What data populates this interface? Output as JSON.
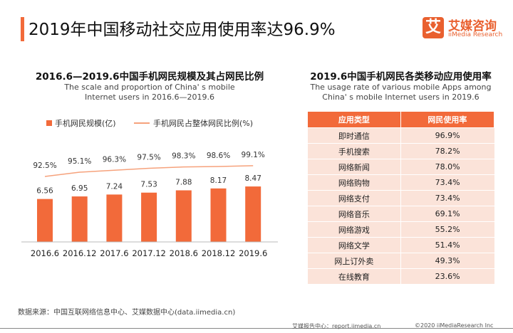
{
  "header": {
    "title": "2019年中国移动社交应用使用率达96.9%",
    "logo_cn": "艾媒咨询",
    "logo_en": "iiMedia Research",
    "logo_mark": "艾"
  },
  "left": {
    "title": "2016.6—2019.6中国手机网民规模及其占网民比例",
    "subtitle1": "The scale and proportion of China' s mobile",
    "subtitle2": "Internet users  in 2016.6—2019.6"
  },
  "right": {
    "title": "2019.6中国手机网民各类移动应用使用率",
    "subtitle1": "The usage rate of various mobile Apps among",
    "subtitle2": "China' s mobile Internet users in 2019.6"
  },
  "chart_data": {
    "type": "bar",
    "categories": [
      "2016.6",
      "2016.12",
      "2017.6",
      "2017.12",
      "2018.6",
      "2018.12",
      "2019.6"
    ],
    "series": [
      {
        "name": "手机网民规模(亿)",
        "type": "bar",
        "values": [
          6.56,
          6.95,
          7.24,
          7.53,
          7.88,
          8.17,
          8.47
        ],
        "color": "#f26a3a"
      },
      {
        "name": "手机网民占整体网民比例(%)",
        "type": "line",
        "values": [
          92.5,
          95.1,
          96.3,
          97.5,
          98.3,
          98.6,
          99.1
        ],
        "labels": [
          "92.5%",
          "95.1%",
          "96.3%",
          "97.5%",
          "98.3%",
          "98.6%",
          "99.1%"
        ],
        "color": "#f6a27c"
      }
    ],
    "legend": "top",
    "grid": false
  },
  "table": {
    "headers": [
      "应用类型",
      "网民使用率"
    ],
    "rows": [
      [
        "即时通信",
        "96.9%"
      ],
      [
        "手机搜索",
        "78.2%"
      ],
      [
        "网络新闻",
        "78.0%"
      ],
      [
        "网络购物",
        "73.4%"
      ],
      [
        "网络支付",
        "73.4%"
      ],
      [
        "网络音乐",
        "69.1%"
      ],
      [
        "网络游戏",
        "55.2%"
      ],
      [
        "网络文学",
        "51.4%"
      ],
      [
        "网上订外卖",
        "49.3%"
      ],
      [
        "在线教育",
        "23.6%"
      ]
    ]
  },
  "footer": {
    "source": "数据来源：中国互联网络信息中心、艾媒数据中心(data.iimedia.cn)",
    "report": "艾媒报告中心：report.iimedia.cn",
    "copyright": "©2020  iiMediaResearch  Inc"
  }
}
